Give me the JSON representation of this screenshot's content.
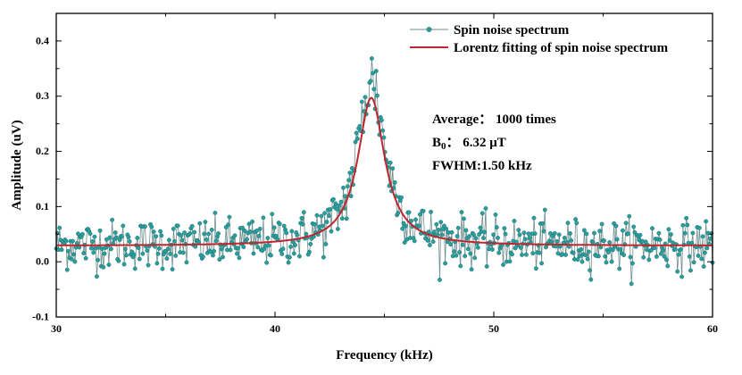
{
  "chart_data": {
    "type": "line",
    "title": "",
    "xlabel": "Frequency (kHz)",
    "ylabel": "Amplitude (uV)",
    "xlim": [
      30,
      60
    ],
    "ylim": [
      -0.1,
      0.45
    ],
    "x_ticks": [
      30,
      40,
      50,
      60
    ],
    "x_tick_labels": [
      "30",
      "40",
      "50",
      "60"
    ],
    "y_ticks": [
      -0.1,
      0.0,
      0.1,
      0.2,
      0.3,
      0.4
    ],
    "y_tick_labels": [
      "-0.1",
      "0.0",
      "0.1",
      "0.2",
      "0.3",
      "0.4"
    ],
    "grid": false,
    "legend_position": "top-right",
    "series": [
      {
        "name": "Spin noise spectrum",
        "style": "line+markers",
        "color": "#2a9d9d",
        "line_color": "#6f8f8f",
        "x_range": [
          30,
          60
        ],
        "n_points": 600,
        "baseline": 0.03,
        "noise_sd": 0.022,
        "peak_center": 44.4,
        "peak_amplitude": 0.3,
        "peak_fwhm": 1.5,
        "peak_max_observed": 0.37,
        "min_observed": -0.04
      },
      {
        "name": "Lorentz fitting of spin noise spectrum",
        "style": "line",
        "color": "#c0262d",
        "baseline": 0.029,
        "center": 44.4,
        "amplitude": 0.268,
        "fwhm": 1.5
      }
    ],
    "annotations": {
      "average": "Average： 1000 times",
      "b0_symbol": "B",
      "b0_subscript": "0",
      "b0_value": "： 6.32 μT",
      "fwhm": "FWHM:1.50 kHz"
    }
  }
}
